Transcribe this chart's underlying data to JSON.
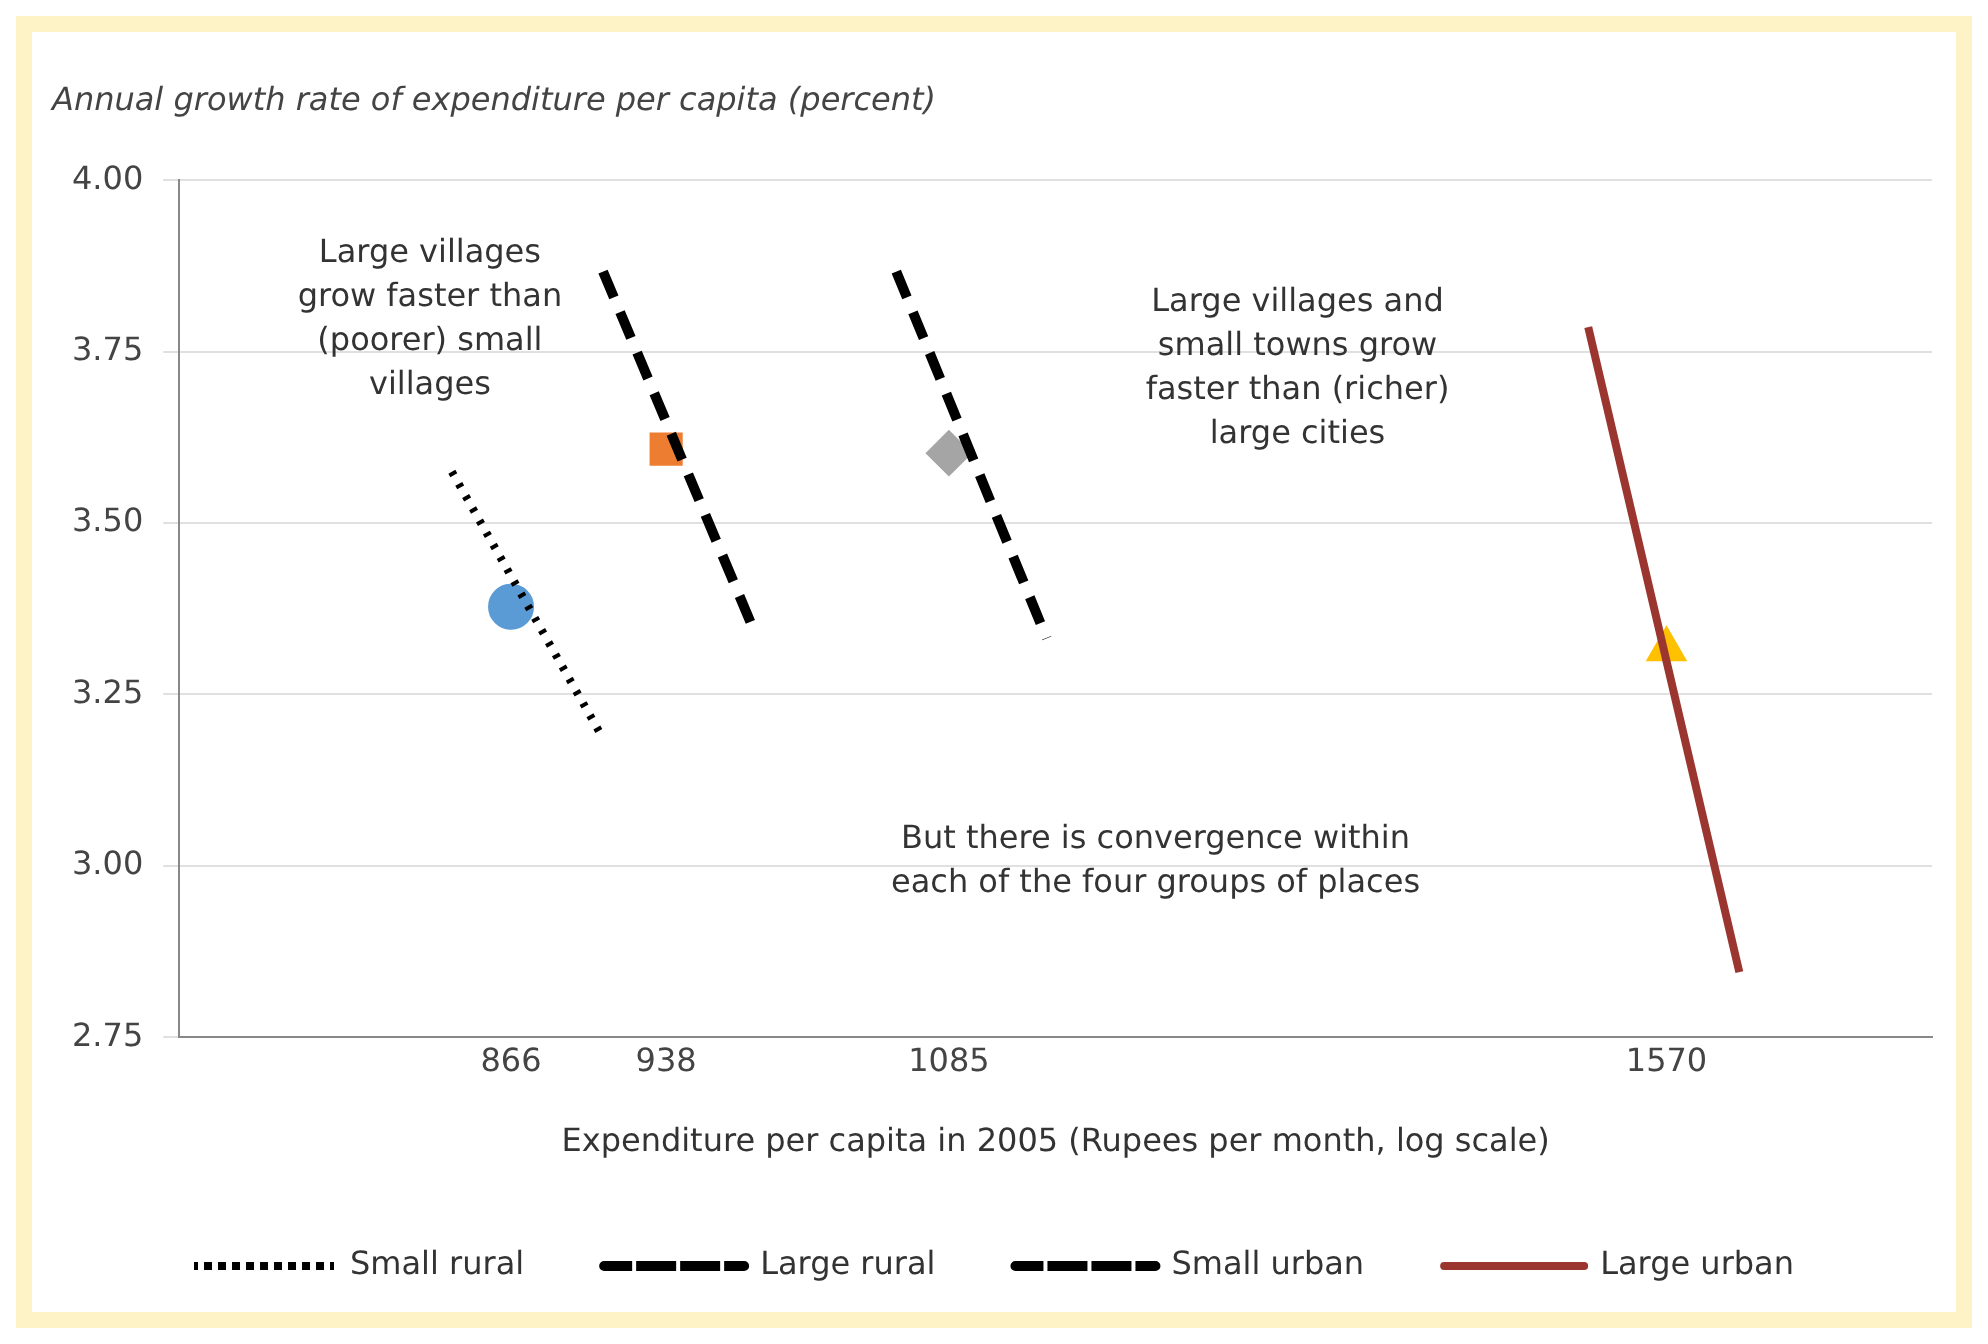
{
  "chart_data": {
    "type": "line",
    "title": "Annual growth rate of expenditure per capita (percent)",
    "xlabel": "Expenditure per capita in 2005 (Rupees per month, log scale)",
    "log": "x",
    "xlim": [
      730,
      1800
    ],
    "xticks": [
      866,
      938,
      1085,
      1570
    ],
    "ylim": [
      2.75,
      4
    ],
    "yticks": [
      {
        "value": 2.75,
        "label": "2.75"
      },
      {
        "value": 3,
        "label": "3.00"
      },
      {
        "value": 3.25,
        "label": "3.25"
      },
      {
        "value": 3.5,
        "label": "3.50"
      },
      {
        "value": 3.75,
        "label": "3.75"
      },
      {
        "value": 4,
        "label": "4.00"
      }
    ],
    "grid": "y",
    "legend": "bottom",
    "series": [
      {
        "name": "Small rural",
        "type": "line",
        "color": "#000000",
        "line_style": "dotted",
        "marker": "none",
        "x": [
          840,
          908
        ],
        "values": [
          3.575,
          3.186
        ]
      },
      {
        "name": "Large rural",
        "type": "line",
        "color": "#000000",
        "line_style": "dashed",
        "marker": "none",
        "x": [
          908,
          980
        ],
        "values": [
          3.867,
          3.353
        ]
      },
      {
        "name": "Small urban",
        "type": "line",
        "color": "#000000",
        "line_style": "dashed",
        "marker": "none",
        "x": [
          1056,
          1141
        ],
        "values": [
          3.867,
          3.332
        ]
      },
      {
        "name": "Large urban",
        "type": "line",
        "color": "#9b3530",
        "line_style": "solid",
        "marker": "none",
        "x": [
          1508,
          1630
        ],
        "values": [
          3.786,
          2.845
        ]
      },
      {
        "type": "scatter",
        "color": "#5b9bd5",
        "marker": "circle",
        "x": [
          866
        ],
        "values": [
          3.378
        ]
      },
      {
        "type": "scatter",
        "color": "#ed7d31",
        "marker": "square",
        "x": [
          938
        ],
        "values": [
          3.608
        ]
      },
      {
        "type": "scatter",
        "color": "#a5a5a5",
        "marker": "diamond",
        "x": [
          1085
        ],
        "values": [
          3.602
        ]
      },
      {
        "type": "scatter",
        "color": "#ffc000",
        "marker": "triangle",
        "x": [
          1570
        ],
        "values": [
          3.316
        ]
      }
    ],
    "annotations": [
      "Large villages\ngrow faster than\n(poorer) small\nvillages",
      "Large villages and\nsmall towns grow\nfaster than (richer)\nlarge cities",
      "But there is convergence within\neach of the four groups of places"
    ]
  }
}
